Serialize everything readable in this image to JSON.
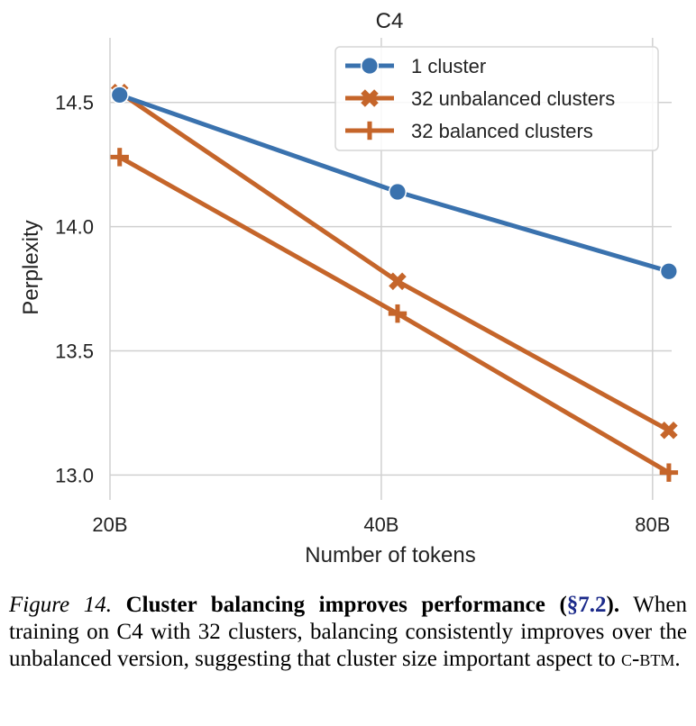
{
  "chart_data": {
    "type": "line",
    "title": "C4",
    "xlabel": "Number of tokens",
    "ylabel": "Perplexity",
    "x_scale": "log",
    "x_ticks": [
      {
        "value": 20,
        "label": "20B"
      },
      {
        "value": 40,
        "label": "40B"
      },
      {
        "value": 80,
        "label": "80B"
      }
    ],
    "y_ticks": [
      {
        "value": 13.0,
        "label": "13.0"
      },
      {
        "value": 13.5,
        "label": "13.5"
      },
      {
        "value": 14.0,
        "label": "14.0"
      },
      {
        "value": 14.5,
        "label": "14.5"
      }
    ],
    "xlim": [
      20,
      84
    ],
    "ylim": [
      12.9,
      14.76
    ],
    "grid": true,
    "legend_position": "top-right",
    "series": [
      {
        "name": "1 cluster",
        "marker": "circle",
        "color": "#3a72ae",
        "points": [
          {
            "x": 20.5,
            "y": 14.53
          },
          {
            "x": 41.7,
            "y": 14.14
          },
          {
            "x": 83.4,
            "y": 13.82
          }
        ]
      },
      {
        "name": "32 unbalanced clusters",
        "marker": "x",
        "color": "#c5652a",
        "points": [
          {
            "x": 20.5,
            "y": 14.54
          },
          {
            "x": 41.7,
            "y": 13.78
          },
          {
            "x": 83.4,
            "y": 13.18
          }
        ]
      },
      {
        "name": "32 balanced clusters",
        "marker": "plus",
        "color": "#c5652a",
        "points": [
          {
            "x": 20.5,
            "y": 14.28
          },
          {
            "x": 41.7,
            "y": 13.65
          },
          {
            "x": 83.4,
            "y": 13.01
          }
        ]
      }
    ]
  },
  "caption": {
    "fig_label": "Figure 14.",
    "heading_start": "Cluster balancing improves performance (",
    "heading_ref": "§7.2",
    "heading_end": ").",
    "body_start": "When training on C4 with 32 clusters, balancing consistently improves over the unbalanced version, suggesting that cluster size important aspect to ",
    "body_sc": "c-btm",
    "body_end": "."
  }
}
